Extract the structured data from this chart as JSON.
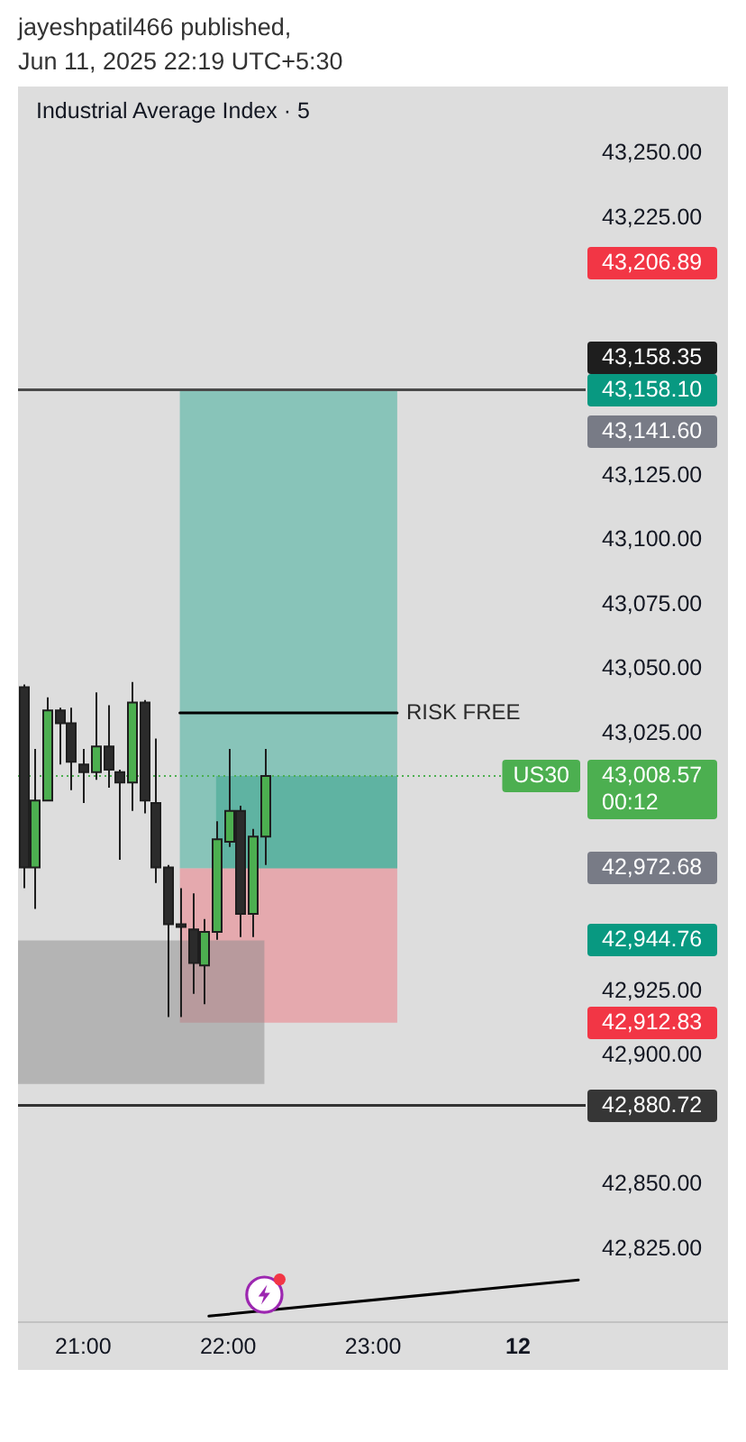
{
  "chart_data": {
    "type": "candlestick",
    "title": "jayeshpatil466 published,",
    "subtitle": "Jun 11, 2025 22:19 UTC+5:30",
    "x": [
      "2025-06-11T20:35",
      "2025-06-11T20:40",
      "2025-06-11T20:45",
      "2025-06-11T20:50",
      "2025-06-11T20:55",
      "2025-06-11T21:00",
      "2025-06-11T21:05",
      "2025-06-11T21:10",
      "2025-06-11T21:15",
      "2025-06-11T21:20",
      "2025-06-11T21:25",
      "2025-06-11T21:30",
      "2025-06-11T21:35",
      "2025-06-11T21:40",
      "2025-06-11T21:45",
      "2025-06-11T21:50",
      "2025-06-11T21:55",
      "2025-06-11T22:00",
      "2025-06-11T22:05",
      "2025-06-11T22:10",
      "2025-06-11T22:15"
    ],
    "ohlc": [
      [
        43043,
        43044,
        42965,
        42973
      ],
      [
        42973,
        43019,
        42957,
        42999
      ],
      [
        42999,
        43039,
        42999,
        43034
      ],
      [
        43034,
        43035,
        43013,
        43029
      ],
      [
        43029,
        43035,
        43003,
        43014
      ],
      [
        43013,
        43019,
        42998,
        43010
      ],
      [
        43010,
        43041,
        43007,
        43020
      ],
      [
        43020,
        43036,
        43004,
        43011
      ],
      [
        43010,
        43011,
        42976,
        43006
      ],
      [
        43006,
        43045,
        42995,
        43037
      ],
      [
        43037,
        43038,
        42994,
        42999
      ],
      [
        42998,
        43023,
        42967,
        42973
      ],
      [
        42973,
        42974,
        42915,
        42951
      ],
      [
        42951,
        42965,
        42915,
        42950
      ],
      [
        42949,
        42963,
        42924,
        42936
      ],
      [
        42935,
        42953,
        42920,
        42948
      ],
      [
        42948,
        42991,
        42945,
        42984
      ],
      [
        42983,
        43019,
        42981,
        42995
      ],
      [
        42995,
        42997,
        42946,
        42955
      ],
      [
        42955,
        42988,
        42946,
        42985
      ],
      [
        42985,
        43019,
        42974,
        43008.57
      ]
    ],
    "series": [
      {
        "type": "area",
        "color": "#88c4b9",
        "x": [
          "2025-06-11T21:40",
          "2025-06-11T23:10"
        ],
        "values": [
          null,
          null
        ],
        "lower": [
          42972.68,
          42972.68
        ],
        "upper": [
          43158.1,
          43158.1
        ]
      },
      {
        "type": "area",
        "color": "#5fb3a2",
        "x": [
          "2025-06-11T21:55",
          "2025-06-11T23:10"
        ],
        "values": [
          null,
          null
        ],
        "lower": [
          42972.68,
          42972.68
        ],
        "upper": [
          43008.57,
          43008.57
        ]
      },
      {
        "type": "area",
        "color": "#e5a9ae",
        "x": [
          "2025-06-11T21:40",
          "2025-06-11T23:10"
        ],
        "values": [
          null,
          null
        ],
        "lower": [
          42912.83,
          42912.83
        ],
        "upper": [
          42972.68,
          42972.68
        ]
      },
      {
        "type": "area",
        "color": "#b4b4b4",
        "x": [
          "2025-06-11T20:33",
          "2025-06-11T22:15"
        ],
        "values": [
          null,
          null
        ],
        "lower": [
          42889,
          42889
        ],
        "upper": [
          42944.76,
          42944.76
        ]
      },
      {
        "type": "line",
        "name": "RISK FREE",
        "color": "#000000",
        "x": [
          "2025-06-11T21:40",
          "2025-06-11T23:10"
        ],
        "values": [
          43033,
          43033
        ]
      },
      {
        "type": "line",
        "color": "#000000",
        "x": [
          "2025-06-11T21:52",
          "2025-06-12T00:25"
        ],
        "values": [
          42799,
          42813
        ]
      }
    ],
    "ref_lines": [
      {
        "axis": "y",
        "value": 43158.35,
        "color": "#4a4a4a"
      },
      {
        "axis": "y",
        "value": 42880.72,
        "color": "#333333"
      },
      {
        "axis": "y",
        "value": 43008.57,
        "label": "US30",
        "color": "#4caf50",
        "line_style": "dotted"
      }
    ],
    "annotations": [
      "Industrial Average Index · 5",
      "43,206.89",
      "43,158.35",
      "43,158.10",
      "43,141.60",
      "43,008.57\n00:12",
      "42,972.68",
      "42,944.76",
      "42,912.83",
      "42,880.72"
    ],
    "xlim": [
      "2025-06-11T20:33",
      "2025-06-12T00:28"
    ],
    "xticks": [
      {
        "value": "2025-06-11T21:00",
        "label": "21:00"
      },
      {
        "value": "2025-06-11T22:00",
        "label": "22:00"
      },
      {
        "value": "2025-06-11T23:00",
        "label": "23:00"
      },
      {
        "value": "2025-06-12T00:00",
        "label": "12"
      }
    ],
    "ylim": [
      42797,
      43276
    ],
    "yticks": [
      {
        "value": 43250,
        "label": "43,250.00"
      },
      {
        "value": 43225,
        "label": "43,225.00"
      },
      {
        "value": 43125,
        "label": "43,125.00"
      },
      {
        "value": 43100,
        "label": "43,100.00"
      },
      {
        "value": 43075,
        "label": "43,075.00"
      },
      {
        "value": 43050,
        "label": "43,050.00"
      },
      {
        "value": 43025,
        "label": "43,025.00"
      },
      {
        "value": 42925,
        "label": "42,925.00"
      },
      {
        "value": 42900,
        "label": "42,900.00"
      },
      {
        "value": 42850,
        "label": "42,850.00"
      },
      {
        "value": 42825,
        "label": "42,825.00"
      }
    ]
  }
}
